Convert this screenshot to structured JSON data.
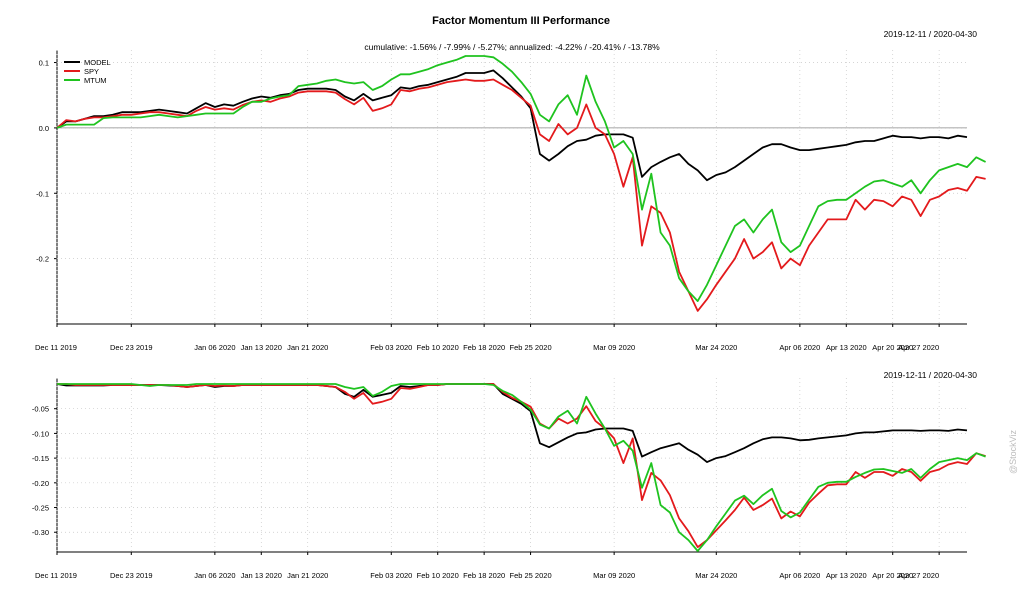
{
  "title": "Factor Momentum III Performance",
  "watermark": "@StockViz",
  "chart_data": [
    {
      "type": "line",
      "panel": "cumulative-returns",
      "title": "Factor Momentum III Performance",
      "date_range": "2019-12-11 / 2020-04-30",
      "subtitle": "cumulative: -1.56% / -7.99% / -5.27%; annualized: -4.22% / -20.41% / -13.78%",
      "legend": "top-left",
      "grid": true,
      "ylim": [
        -0.3,
        0.11
      ],
      "y_ticks": [
        0.1,
        0.0,
        -0.1,
        -0.2
      ],
      "y_tick_labels": [
        "0.1",
        "0.0",
        "-0.1",
        "-0.2"
      ],
      "x_ticks": [
        "Dec 11 2019",
        "Dec 23 2019",
        "Jan 06 2020",
        "Jan 13 2020",
        "Jan 21 2020",
        "Feb 03 2020",
        "Feb 10 2020",
        "Feb 18 2020",
        "Feb 25 2020",
        "Mar 09 2020",
        "Mar 24 2020",
        "Apr 06 2020",
        "Apr 13 2020",
        "Apr 20 2020",
        "Apr 27 2020"
      ],
      "x_tick_index": [
        0,
        8,
        17,
        22,
        27,
        36,
        41,
        46,
        51,
        60,
        71,
        80,
        85,
        90,
        95
      ],
      "series": [
        {
          "name": "MODEL",
          "color": "#000000",
          "values": [
            0.0,
            0.01,
            0.01,
            0.014,
            0.018,
            0.018,
            0.02,
            0.024,
            0.024,
            0.024,
            0.026,
            0.028,
            0.026,
            0.024,
            0.022,
            0.03,
            0.038,
            0.032,
            0.036,
            0.034,
            0.04,
            0.045,
            0.048,
            0.046,
            0.05,
            0.052,
            0.058,
            0.06,
            0.06,
            0.06,
            0.058,
            0.048,
            0.042,
            0.052,
            0.042,
            0.046,
            0.05,
            0.062,
            0.06,
            0.064,
            0.066,
            0.07,
            0.074,
            0.078,
            0.084,
            0.084,
            0.084,
            0.088,
            0.076,
            0.062,
            0.048,
            0.03,
            -0.04,
            -0.05,
            -0.04,
            -0.028,
            -0.02,
            -0.018,
            -0.012,
            -0.01,
            -0.01,
            -0.01,
            -0.015,
            -0.075,
            -0.06,
            -0.052,
            -0.045,
            -0.04,
            -0.055,
            -0.065,
            -0.08,
            -0.072,
            -0.068,
            -0.06,
            -0.05,
            -0.04,
            -0.03,
            -0.025,
            -0.025,
            -0.03,
            -0.034,
            -0.034,
            -0.032,
            -0.03,
            -0.028,
            -0.026,
            -0.022,
            -0.02,
            -0.02,
            -0.016,
            -0.012,
            -0.014,
            -0.014,
            -0.016,
            -0.014,
            -0.014,
            -0.016,
            -0.012,
            -0.014
          ]
        },
        {
          "name": "SPY",
          "color": "#e31a1c",
          "values": [
            0.0,
            0.012,
            0.01,
            0.014,
            0.016,
            0.016,
            0.018,
            0.02,
            0.02,
            0.022,
            0.024,
            0.024,
            0.022,
            0.02,
            0.018,
            0.026,
            0.032,
            0.028,
            0.03,
            0.028,
            0.035,
            0.04,
            0.042,
            0.04,
            0.045,
            0.048,
            0.054,
            0.056,
            0.056,
            0.056,
            0.054,
            0.044,
            0.036,
            0.046,
            0.026,
            0.03,
            0.036,
            0.058,
            0.056,
            0.06,
            0.062,
            0.066,
            0.07,
            0.072,
            0.074,
            0.072,
            0.072,
            0.074,
            0.066,
            0.058,
            0.046,
            0.034,
            -0.01,
            -0.02,
            0.006,
            -0.01,
            0.0,
            0.036,
            0.0,
            -0.01,
            -0.04,
            -0.09,
            -0.045,
            -0.18,
            -0.12,
            -0.13,
            -0.16,
            -0.22,
            -0.25,
            -0.28,
            -0.262,
            -0.24,
            -0.22,
            -0.2,
            -0.17,
            -0.2,
            -0.19,
            -0.175,
            -0.215,
            -0.2,
            -0.21,
            -0.18,
            -0.16,
            -0.14,
            -0.14,
            -0.14,
            -0.11,
            -0.125,
            -0.11,
            -0.112,
            -0.12,
            -0.105,
            -0.11,
            -0.135,
            -0.11,
            -0.105,
            -0.095,
            -0.092,
            -0.096,
            -0.075,
            -0.078
          ]
        },
        {
          "name": "MTUM",
          "color": "#1fc31f",
          "values": [
            0.0,
            0.005,
            0.005,
            0.005,
            0.005,
            0.015,
            0.016,
            0.016,
            0.016,
            0.016,
            0.018,
            0.02,
            0.018,
            0.016,
            0.018,
            0.02,
            0.022,
            0.022,
            0.022,
            0.022,
            0.032,
            0.04,
            0.04,
            0.045,
            0.048,
            0.05,
            0.064,
            0.066,
            0.068,
            0.072,
            0.074,
            0.07,
            0.068,
            0.07,
            0.058,
            0.064,
            0.074,
            0.082,
            0.082,
            0.086,
            0.09,
            0.096,
            0.1,
            0.104,
            0.11,
            0.11,
            0.11,
            0.108,
            0.098,
            0.086,
            0.07,
            0.052,
            0.02,
            0.01,
            0.036,
            0.05,
            0.02,
            0.08,
            0.04,
            0.01,
            -0.03,
            -0.02,
            -0.04,
            -0.125,
            -0.07,
            -0.16,
            -0.18,
            -0.23,
            -0.25,
            -0.265,
            -0.24,
            -0.21,
            -0.18,
            -0.15,
            -0.14,
            -0.16,
            -0.14,
            -0.125,
            -0.175,
            -0.19,
            -0.18,
            -0.15,
            -0.12,
            -0.112,
            -0.11,
            -0.11,
            -0.1,
            -0.09,
            -0.082,
            -0.08,
            -0.085,
            -0.09,
            -0.08,
            -0.1,
            -0.08,
            -0.065,
            -0.06,
            -0.055,
            -0.06,
            -0.045,
            -0.052
          ]
        }
      ]
    },
    {
      "type": "line",
      "panel": "drawdowns",
      "date_range": "2019-12-11 / 2020-04-30",
      "grid": true,
      "ylim": [
        -0.34,
        0.0
      ],
      "y_ticks": [
        -0.05,
        -0.1,
        -0.15,
        -0.2,
        -0.25,
        -0.3
      ],
      "y_tick_labels": [
        "-0.05",
        "-0.10",
        "-0.15",
        "-0.20",
        "-0.25",
        "-0.30"
      ],
      "x_ticks": [
        "Dec 11 2019",
        "Dec 23 2019",
        "Jan 06 2020",
        "Jan 13 2020",
        "Jan 21 2020",
        "Feb 03 2020",
        "Feb 10 2020",
        "Feb 18 2020",
        "Feb 25 2020",
        "Mar 09 2020",
        "Mar 24 2020",
        "Apr 06 2020",
        "Apr 13 2020",
        "Apr 20 2020",
        "Apr 27 2020"
      ],
      "x_tick_index": [
        0,
        8,
        17,
        22,
        27,
        36,
        41,
        46,
        51,
        60,
        71,
        80,
        85,
        90,
        95
      ],
      "series": [
        {
          "name": "MODEL",
          "color": "#000000",
          "values": [
            0.0,
            -0.003,
            -0.003,
            -0.003,
            -0.003,
            -0.003,
            -0.002,
            -0.002,
            -0.002,
            -0.002,
            -0.002,
            -0.002,
            -0.003,
            -0.004,
            -0.006,
            -0.004,
            -0.002,
            -0.006,
            -0.004,
            -0.004,
            -0.002,
            -0.002,
            -0.002,
            -0.002,
            -0.002,
            -0.002,
            -0.002,
            -0.002,
            -0.002,
            -0.004,
            -0.006,
            -0.02,
            -0.026,
            -0.012,
            -0.026,
            -0.022,
            -0.018,
            -0.004,
            -0.006,
            -0.004,
            -0.002,
            -0.002,
            0.0,
            0.0,
            0.0,
            0.0,
            0.0,
            0.0,
            -0.02,
            -0.03,
            -0.04,
            -0.055,
            -0.12,
            -0.128,
            -0.118,
            -0.108,
            -0.1,
            -0.098,
            -0.092,
            -0.09,
            -0.09,
            -0.09,
            -0.095,
            -0.147,
            -0.138,
            -0.13,
            -0.125,
            -0.12,
            -0.133,
            -0.143,
            -0.158,
            -0.15,
            -0.146,
            -0.138,
            -0.13,
            -0.12,
            -0.112,
            -0.108,
            -0.108,
            -0.11,
            -0.114,
            -0.113,
            -0.11,
            -0.108,
            -0.106,
            -0.104,
            -0.1,
            -0.098,
            -0.098,
            -0.096,
            -0.094,
            -0.094,
            -0.094,
            -0.095,
            -0.094,
            -0.094,
            -0.095,
            -0.092,
            -0.094
          ]
        },
        {
          "name": "SPY",
          "color": "#e31a1c",
          "values": [
            0.0,
            0.0,
            -0.002,
            -0.002,
            -0.002,
            -0.002,
            -0.002,
            -0.002,
            -0.002,
            -0.002,
            -0.002,
            -0.002,
            -0.002,
            -0.004,
            -0.006,
            -0.004,
            -0.002,
            -0.004,
            -0.003,
            -0.004,
            -0.002,
            -0.002,
            -0.002,
            -0.002,
            -0.002,
            -0.002,
            -0.002,
            -0.002,
            -0.002,
            -0.004,
            -0.006,
            -0.016,
            -0.03,
            -0.018,
            -0.04,
            -0.036,
            -0.03,
            -0.008,
            -0.01,
            -0.006,
            -0.002,
            -0.002,
            0.0,
            0.0,
            0.0,
            0.0,
            0.0,
            0.0,
            -0.016,
            -0.028,
            -0.036,
            -0.046,
            -0.08,
            -0.09,
            -0.07,
            -0.08,
            -0.07,
            -0.045,
            -0.075,
            -0.09,
            -0.11,
            -0.16,
            -0.11,
            -0.235,
            -0.18,
            -0.195,
            -0.225,
            -0.272,
            -0.298,
            -0.33,
            -0.316,
            -0.296,
            -0.276,
            -0.255,
            -0.23,
            -0.255,
            -0.245,
            -0.232,
            -0.272,
            -0.258,
            -0.268,
            -0.24,
            -0.222,
            -0.205,
            -0.203,
            -0.203,
            -0.178,
            -0.19,
            -0.178,
            -0.178,
            -0.186,
            -0.172,
            -0.178,
            -0.196,
            -0.178,
            -0.173,
            -0.163,
            -0.158,
            -0.162,
            -0.14,
            -0.146
          ]
        },
        {
          "name": "MTUM",
          "color": "#1fc31f",
          "values": [
            0.0,
            0.0,
            0.0,
            0.0,
            0.0,
            0.0,
            0.0,
            0.0,
            0.0,
            -0.002,
            -0.004,
            -0.002,
            -0.002,
            -0.002,
            -0.002,
            0.0,
            0.0,
            0.0,
            0.0,
            0.0,
            0.0,
            0.0,
            0.0,
            0.0,
            0.0,
            0.0,
            0.0,
            0.0,
            0.0,
            0.0,
            0.0,
            -0.006,
            -0.01,
            -0.006,
            -0.024,
            -0.016,
            -0.004,
            0.0,
            0.0,
            0.0,
            0.0,
            0.0,
            0.0,
            0.0,
            0.0,
            0.0,
            0.0,
            -0.002,
            -0.014,
            -0.022,
            -0.036,
            -0.052,
            -0.082,
            -0.09,
            -0.066,
            -0.054,
            -0.08,
            -0.026,
            -0.06,
            -0.09,
            -0.125,
            -0.115,
            -0.135,
            -0.21,
            -0.16,
            -0.245,
            -0.26,
            -0.3,
            -0.316,
            -0.338,
            -0.316,
            -0.288,
            -0.262,
            -0.236,
            -0.226,
            -0.243,
            -0.225,
            -0.212,
            -0.257,
            -0.27,
            -0.26,
            -0.234,
            -0.208,
            -0.2,
            -0.198,
            -0.198,
            -0.188,
            -0.18,
            -0.173,
            -0.172,
            -0.176,
            -0.18,
            -0.172,
            -0.19,
            -0.172,
            -0.158,
            -0.154,
            -0.15,
            -0.154,
            -0.14,
            -0.147
          ]
        }
      ]
    }
  ]
}
